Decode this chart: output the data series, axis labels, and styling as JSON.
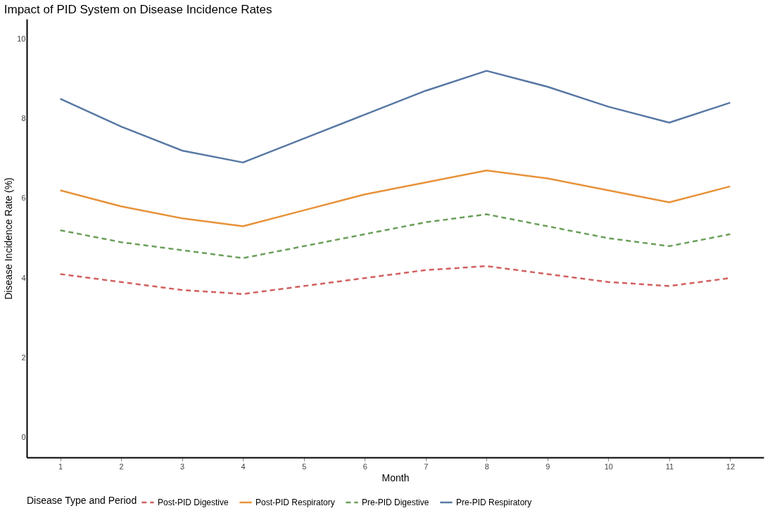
{
  "chart_data": {
    "type": "line",
    "title": "Impact of PID System on Disease Incidence Rates",
    "xlabel": "Month",
    "ylabel": "Disease Incidence Rate (%)",
    "legend_title": "Disease Type and Period",
    "legend": "bottom",
    "grid": false,
    "x": [
      1,
      2,
      3,
      4,
      5,
      6,
      7,
      8,
      9,
      10,
      11,
      12
    ],
    "xlim": [
      0.45,
      12.55
    ],
    "xticks": [
      1,
      2,
      3,
      4,
      5,
      6,
      7,
      8,
      9,
      10,
      11,
      12
    ],
    "ylim": [
      -0.5,
      10.5
    ],
    "yticks": [
      0,
      2,
      4,
      6,
      8,
      10
    ],
    "series": [
      {
        "name": "Post-PID Digestive",
        "color": "#d1605e",
        "line_style": "dashed",
        "values": [
          4.1,
          3.9,
          3.7,
          3.6,
          3.8,
          4.0,
          4.2,
          4.3,
          4.1,
          3.9,
          3.8,
          4.0
        ]
      },
      {
        "name": "Post-PID Respiratory",
        "color": "#e8923a",
        "line_style": "solid",
        "values": [
          6.2,
          5.8,
          5.5,
          5.3,
          5.7,
          6.1,
          6.4,
          6.7,
          6.5,
          6.2,
          5.9,
          6.3
        ]
      },
      {
        "name": "Pre-PID Digestive",
        "color": "#6a9f58",
        "line_style": "dashed",
        "values": [
          5.2,
          4.9,
          4.7,
          4.5,
          4.8,
          5.1,
          5.4,
          5.6,
          5.3,
          5.0,
          4.8,
          5.1
        ]
      },
      {
        "name": "Pre-PID Respiratory",
        "color": "#5778a4",
        "line_style": "solid",
        "values": [
          8.5,
          7.8,
          7.2,
          6.9,
          7.5,
          8.1,
          8.7,
          9.2,
          8.8,
          8.3,
          7.9,
          8.4
        ]
      }
    ]
  }
}
